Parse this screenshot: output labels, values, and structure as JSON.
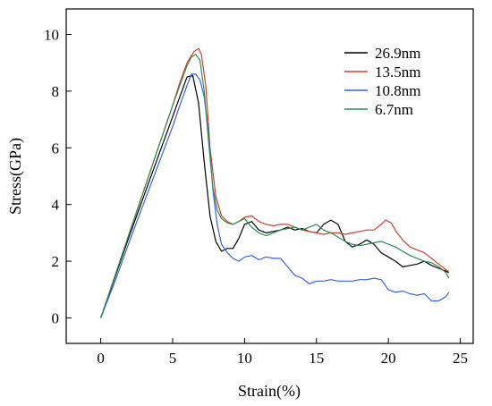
{
  "chart_data": {
    "type": "line",
    "title": "",
    "xlabel": "Strain(%)",
    "ylabel": "Stress(GPa)",
    "xlim": [
      -2.4,
      25.9
    ],
    "ylim": [
      -0.9,
      10.9
    ],
    "x_ticks": [
      0,
      5,
      10,
      15,
      20,
      25
    ],
    "y_ticks": [
      0,
      2,
      4,
      6,
      8,
      10
    ],
    "grid": false,
    "legend_position": "top-right",
    "series": [
      {
        "name": "26.9nm",
        "color": "#000000",
        "x": [
          0,
          1,
          2,
          3,
          4,
          5,
          5.5,
          6.0,
          6.4,
          6.8,
          7.2,
          7.6,
          8.0,
          8.4,
          8.8,
          9.2,
          9.6,
          10.0,
          10.5,
          11.0,
          11.5,
          12.0,
          12.5,
          13.0,
          13.5,
          14.0,
          14.5,
          15.0,
          15.5,
          16.0,
          16.5,
          17.0,
          17.5,
          18.0,
          18.5,
          19.0,
          19.5,
          20.0,
          20.5,
          21.0,
          21.5,
          22.0,
          22.5,
          23.0,
          23.5,
          24.0,
          24.2
        ],
        "y": [
          0,
          1.45,
          2.9,
          4.3,
          5.7,
          7.1,
          7.8,
          8.5,
          8.55,
          7.6,
          5.5,
          3.6,
          2.7,
          2.35,
          2.45,
          2.45,
          2.8,
          3.3,
          3.4,
          3.1,
          3.0,
          3.05,
          3.1,
          3.2,
          3.1,
          3.15,
          3.05,
          3.0,
          3.3,
          3.45,
          3.3,
          2.7,
          2.5,
          2.6,
          2.75,
          2.6,
          2.3,
          2.15,
          2.0,
          1.8,
          1.85,
          1.9,
          2.0,
          1.85,
          1.75,
          1.65,
          1.6
        ]
      },
      {
        "name": "13.5nm",
        "color": "#d04030",
        "x": [
          0,
          1,
          2,
          3,
          4,
          5,
          5.5,
          6.0,
          6.5,
          6.8,
          7.0,
          7.3,
          7.6,
          8.0,
          8.4,
          8.8,
          9.2,
          9.6,
          10.0,
          10.5,
          11.0,
          11.5,
          12.0,
          12.5,
          13.0,
          13.5,
          14.0,
          14.5,
          15.0,
          15.5,
          16.0,
          16.5,
          17.0,
          17.5,
          18.0,
          18.5,
          19.0,
          19.5,
          19.8,
          20.2,
          20.6,
          21.0,
          21.5,
          22.0,
          22.5,
          23.0,
          23.5,
          24.0,
          24.2
        ],
        "y": [
          0,
          1.5,
          3.0,
          4.5,
          6.0,
          7.5,
          8.3,
          9.0,
          9.4,
          9.5,
          9.3,
          8.2,
          6.0,
          4.3,
          3.6,
          3.4,
          3.3,
          3.4,
          3.55,
          3.6,
          3.4,
          3.3,
          3.25,
          3.3,
          3.3,
          3.2,
          3.1,
          3.05,
          3.0,
          2.95,
          3.0,
          3.0,
          2.95,
          3.0,
          3.05,
          3.1,
          3.1,
          3.3,
          3.45,
          3.35,
          3.0,
          2.75,
          2.5,
          2.4,
          2.3,
          2.1,
          1.9,
          1.7,
          1.65
        ]
      },
      {
        "name": "10.8nm",
        "color": "#3a62d8",
        "x": [
          0,
          1,
          2,
          3,
          4,
          5,
          5.5,
          6.0,
          6.3,
          6.6,
          6.9,
          7.2,
          7.5,
          7.8,
          8.1,
          8.4,
          8.8,
          9.2,
          9.6,
          10.0,
          10.5,
          11.0,
          11.5,
          12.0,
          12.5,
          13.0,
          13.5,
          14.0,
          14.5,
          15.0,
          15.5,
          16.0,
          16.5,
          17.0,
          17.5,
          18.0,
          18.5,
          19.0,
          19.5,
          20.0,
          20.5,
          21.0,
          21.5,
          22.0,
          22.5,
          23.0,
          23.5,
          24.0,
          24.2
        ],
        "y": [
          0,
          1.3,
          2.7,
          4.05,
          5.4,
          6.75,
          7.5,
          8.2,
          8.6,
          8.6,
          8.4,
          7.8,
          6.5,
          4.5,
          3.3,
          2.6,
          2.3,
          2.1,
          2.0,
          2.15,
          2.2,
          2.05,
          2.15,
          2.1,
          2.1,
          1.8,
          1.5,
          1.4,
          1.2,
          1.3,
          1.3,
          1.35,
          1.3,
          1.3,
          1.3,
          1.35,
          1.35,
          1.4,
          1.35,
          1.0,
          0.9,
          0.95,
          0.85,
          0.8,
          0.85,
          0.6,
          0.6,
          0.75,
          0.9
        ]
      },
      {
        "name": "6.7nm",
        "color": "#2e8b57",
        "x": [
          0,
          1,
          2,
          3,
          4,
          5,
          5.5,
          6.0,
          6.3,
          6.6,
          6.9,
          7.2,
          7.5,
          7.8,
          8.1,
          8.4,
          8.8,
          9.2,
          9.6,
          10.0,
          10.5,
          11.0,
          11.5,
          12.0,
          12.5,
          13.0,
          13.5,
          14.0,
          14.5,
          15.0,
          15.5,
          16.0,
          16.5,
          17.0,
          17.5,
          18.0,
          18.5,
          19.0,
          19.5,
          20.0,
          20.5,
          21.0,
          21.5,
          22.0,
          22.5,
          23.0,
          23.5,
          24.0,
          24.2
        ],
        "y": [
          0,
          1.5,
          3.0,
          4.5,
          6.0,
          7.5,
          8.2,
          8.9,
          9.2,
          9.3,
          9.1,
          8.0,
          6.2,
          4.6,
          3.8,
          3.5,
          3.35,
          3.3,
          3.4,
          3.5,
          3.2,
          3.0,
          2.9,
          3.0,
          3.1,
          3.15,
          3.2,
          3.1,
          3.2,
          3.3,
          3.1,
          3.0,
          2.85,
          2.7,
          2.6,
          2.55,
          2.6,
          2.65,
          2.7,
          2.6,
          2.5,
          2.35,
          2.2,
          2.1,
          2.0,
          1.95,
          1.8,
          1.6,
          1.4
        ]
      }
    ]
  }
}
